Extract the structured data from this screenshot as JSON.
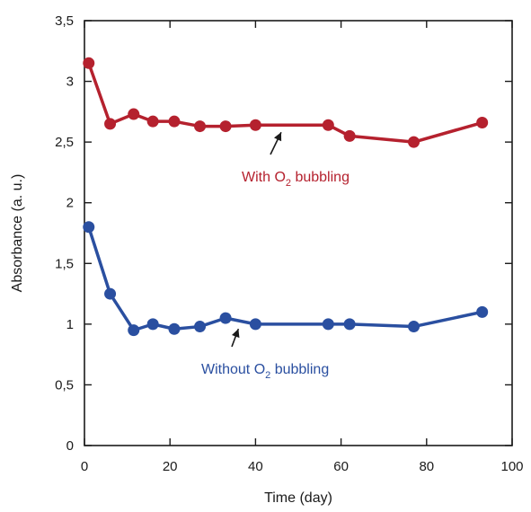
{
  "chart_data": {
    "type": "line",
    "xlabel": "Time (day)",
    "ylabel": "Absorbance (a. u.)",
    "xlim": [
      0,
      100
    ],
    "ylim": [
      0,
      3.5
    ],
    "x_ticks": [
      0,
      20,
      40,
      60,
      80,
      100
    ],
    "y_ticks": [
      0,
      0.5,
      1,
      1.5,
      2,
      2.5,
      3,
      3.5
    ],
    "x_tick_labels": [
      "0",
      "20",
      "40",
      "60",
      "80",
      "100"
    ],
    "y_tick_labels": [
      "0",
      "0,5",
      "1",
      "1,5",
      "2",
      "2,5",
      "3",
      "3,5"
    ],
    "grid": false,
    "series": [
      {
        "color": "#b5212e",
        "x": [
          1,
          6,
          11.5,
          16,
          21,
          27,
          33,
          40,
          57,
          62,
          77,
          93
        ],
        "y": [
          3.15,
          2.65,
          2.73,
          2.67,
          2.67,
          2.63,
          2.63,
          2.64,
          2.64,
          2.55,
          2.5,
          2.66
        ]
      },
      {
        "color": "#2a4fa0",
        "x": [
          1,
          6,
          11.5,
          16,
          21,
          27,
          33,
          40,
          57,
          62,
          77,
          93
        ],
        "y": [
          1.8,
          1.25,
          0.95,
          1.0,
          0.96,
          0.98,
          1.05,
          1.0,
          1.0,
          1.0,
          0.98,
          1.1
        ]
      }
    ],
    "annotations": [
      {
        "text_before": "With O",
        "subscript": "2",
        "text_after": " bubbling",
        "color": "#b5212e",
        "arrow_to": [
          46,
          2.64
        ]
      },
      {
        "text_before": "Without O",
        "subscript": "2",
        "text_after": " bubbling",
        "color": "#2a4fa0",
        "arrow_to": [
          36,
          1.02
        ]
      }
    ]
  }
}
